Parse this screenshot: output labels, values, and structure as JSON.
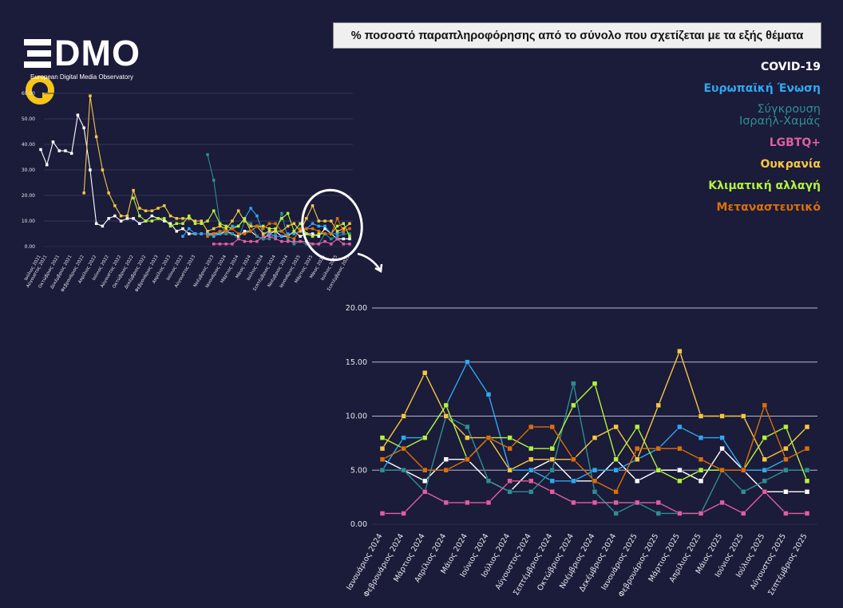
{
  "logo": {
    "brand": "DMO",
    "subtitle": "European Digital Media Observatory"
  },
  "title": "% ποσοστό παραπληροφόρησης από το σύνολο που σχετίζεται με τα εξής θέματα",
  "legend": [
    {
      "label": "COVID-19",
      "color": "#ffffff"
    },
    {
      "label": "Ευρωπαϊκή Ένωση",
      "color": "#2fa8f0"
    },
    {
      "label": "Σύγκρουση",
      "label2": "Ισραήλ-Χαμάς",
      "color": "#2d8f92"
    },
    {
      "label": "LGBTQ+",
      "color": "#e05fa0"
    },
    {
      "label": "Ουκρανία",
      "color": "#f5c842"
    },
    {
      "label": "Κλιματική αλλαγή",
      "color": "#b5f23c"
    },
    {
      "label": "Μεταναστευτικό",
      "color": "#d9700a"
    }
  ],
  "chart_data": [
    {
      "type": "line",
      "title": "",
      "ylim": [
        0,
        60
      ],
      "yticks": [
        "0.00",
        "10.00",
        "20.00",
        "30.00",
        "40.00",
        "50.00",
        "60.00"
      ],
      "ytick_values": [
        0,
        10,
        20,
        30,
        40,
        50,
        60
      ],
      "grid": true,
      "categories": [
        "Ιούλιος 2021",
        "Αύγουστος 2021",
        "Σεπτέμβριος 2021",
        "Οκτώβριος 2021",
        "Νοέμβριος 2021",
        "Δεκέμβριος 2021",
        "Ιανουάριος 2022",
        "Φεβρουάριος 2022",
        "Μάρτιος 2022",
        "Απρίλιος 2022",
        "Μάιος 2022",
        "Ιούνιος 2022",
        "Ιούλιος 2022",
        "Αύγουστος 2022",
        "Σεπτέμβριος 2022",
        "Οκτώβριος 2022",
        "Νοέμβριος 2022",
        "Δεκέμβριος 2022",
        "Ιανουάριος 2023",
        "Φεβρουάριος 2023",
        "Μάρτιος 2023",
        "Απρίλιος 2023",
        "Μάιος 2023",
        "Ιούνιος 2023",
        "Ιούλιος 2023",
        "Αύγουστος 2023",
        "Σεπτέμβριος 2023",
        "Οκτώβριος 2023",
        "Νοέμβριος 2023",
        "Δεκέμβριος 2023",
        "Ιανουάριος 2024",
        "Φεβρουάριος 2024",
        "Μάρτιος 2024",
        "Απρίλιος 2024",
        "Μάιος 2024",
        "Ιούνιος 2024",
        "Ιούλιος 2024",
        "Αύγουστος 2024",
        "Σεπτέμβριος 2024",
        "Οκτώβριος 2024",
        "Νοέμβριος 2024",
        "Δεκέμβριος 2024",
        "Ιανουάριος 2025",
        "Φεβρουάριος 2025",
        "Μάρτιος 2025",
        "Απρίλιος 2025",
        "Μάιος 2025",
        "Ιούνιος 2025",
        "Ιούλιος 2025",
        "Αύγουστος 2025",
        "Σεπτέμβριος 2025"
      ],
      "xtick_labels": [
        "Ιούλιος 2021",
        "Αύγουστος 2021",
        "Οκτώβριος 2021",
        "Δεκέμβριος 2021",
        "Φεβρουάριος 2022",
        "Απρίλιος 2022",
        "Ιούνιος 2022",
        "Αύγουστος 2022",
        "Οκτώβριος 2022",
        "Δεκέμβριος 2022",
        "Φεβρουάριος 2023",
        "Απρίλιος 2023",
        "Ιούνιος 2023",
        "Αύγουστος 2023",
        "Νοέμβριος 2023",
        "Ιανουάριος 2024",
        "Μάρτιος 2024",
        "Μάιος 2024",
        "Ιούλιος 2024",
        "Σεπτέμβριος 2024",
        "Νοέμβριος 2024",
        "Ιανουάριος 2025",
        "Μάρτιος 2025",
        "Μάιος 2025",
        "Ιούλιος 2025",
        "Σεπτέμβριος 2025"
      ],
      "xtick_index": [
        0,
        1,
        3,
        5,
        7,
        9,
        11,
        13,
        15,
        17,
        19,
        21,
        23,
        25,
        28,
        30,
        32,
        34,
        36,
        38,
        40,
        42,
        44,
        46,
        48,
        50
      ],
      "series": [
        {
          "name": "COVID-19",
          "values": [
            38,
            32,
            41,
            37.5,
            37.5,
            36.5,
            51.5,
            46.5,
            30,
            9,
            8,
            11,
            12,
            10,
            11,
            11,
            9,
            10,
            12,
            11,
            10,
            9,
            6,
            7,
            5,
            5,
            5,
            5,
            5,
            5,
            6,
            5,
            4,
            6,
            6,
            4,
            3,
            5,
            6,
            4,
            4,
            6,
            4,
            5,
            5,
            4,
            7,
            5,
            3,
            3,
            3
          ]
        },
        {
          "name": "Ευρωπαϊκή Ένωση",
          "values": [
            null,
            null,
            null,
            null,
            null,
            null,
            null,
            null,
            null,
            null,
            null,
            null,
            null,
            null,
            null,
            null,
            null,
            null,
            null,
            null,
            null,
            null,
            null,
            4,
            7,
            5,
            5,
            5,
            4,
            5,
            5,
            8,
            8,
            11,
            15,
            12,
            5,
            5,
            4,
            4,
            5,
            5,
            6,
            7,
            9,
            8,
            8,
            5,
            5,
            6,
            null
          ]
        },
        {
          "name": "Σύγκρουση Ισραήλ-Χαμάς",
          "values": [
            null,
            null,
            null,
            null,
            null,
            null,
            null,
            null,
            null,
            null,
            null,
            null,
            null,
            null,
            null,
            null,
            null,
            null,
            null,
            null,
            null,
            null,
            null,
            null,
            null,
            null,
            null,
            36,
            26,
            9,
            5,
            5,
            3,
            10,
            9,
            4,
            3,
            3,
            5,
            13,
            3,
            1,
            2,
            1,
            1,
            1,
            5,
            3,
            4,
            5,
            5
          ]
        },
        {
          "name": "LGBTQ+",
          "values": [
            null,
            null,
            null,
            null,
            null,
            null,
            null,
            null,
            null,
            null,
            null,
            null,
            null,
            null,
            null,
            null,
            null,
            null,
            null,
            null,
            null,
            null,
            null,
            null,
            null,
            null,
            null,
            null,
            1,
            1,
            1,
            1,
            3,
            2,
            2,
            2,
            4,
            4,
            3,
            2,
            2,
            2,
            2,
            2,
            1,
            1,
            2,
            1,
            3,
            1,
            1
          ]
        },
        {
          "name": "Ουκρανία",
          "values": [
            null,
            null,
            null,
            null,
            null,
            null,
            null,
            21,
            59,
            43,
            30,
            21,
            16,
            12,
            12,
            22,
            15,
            14,
            14,
            15,
            16,
            12,
            11,
            11,
            11,
            10,
            10,
            6,
            7,
            8,
            7,
            10,
            14,
            10,
            8,
            8,
            5,
            6,
            6,
            6,
            8,
            9,
            6,
            11,
            16,
            10,
            10,
            10,
            6,
            7,
            9
          ]
        },
        {
          "name": "Κλιματική αλλαγή",
          "values": [
            null,
            null,
            null,
            null,
            null,
            null,
            null,
            null,
            null,
            null,
            null,
            null,
            null,
            null,
            null,
            19,
            12,
            10,
            10,
            11,
            11,
            8,
            9,
            9,
            12,
            9,
            9,
            10,
            14,
            9,
            8,
            7,
            8,
            11,
            6,
            8,
            8,
            7,
            7,
            11,
            13,
            6,
            9,
            5,
            4,
            5,
            5,
            5,
            8,
            9,
            4
          ]
        },
        {
          "name": "Μεταναστευτικό",
          "values": [
            null,
            null,
            null,
            null,
            null,
            null,
            null,
            null,
            null,
            null,
            null,
            null,
            null,
            null,
            null,
            null,
            null,
            null,
            null,
            null,
            null,
            null,
            null,
            null,
            null,
            null,
            null,
            4,
            5,
            6,
            6,
            7,
            5,
            5,
            6,
            8,
            7,
            9,
            9,
            6,
            4,
            3,
            7,
            7,
            7,
            6,
            5,
            5,
            11,
            6,
            7
          ]
        }
      ]
    },
    {
      "type": "line",
      "title": "",
      "ylim": [
        0,
        20
      ],
      "yticks": [
        "0.00",
        "5.00",
        "10.00",
        "15.00",
        "20.00"
      ],
      "ytick_values": [
        0,
        5,
        10,
        15,
        20
      ],
      "grid": true,
      "categories": [
        "Ιανουάριος 2024",
        "Φεβρουάριος 2024",
        "Μάρτιος 2024",
        "Απρίλιος 2024",
        "Μάιος 2024",
        "Ιούνιος 2024",
        "Ιούλιος 2024",
        "Αύγουστος 2024",
        "Σεπτέμβριος 2024",
        "Οκτώβριος 2024",
        "Νοέμβριος 2024",
        "Δεκέμβριος 2024",
        "Ιανουάριος 2025",
        "Φεβρουάριος 2025",
        "Μάρτιος 2025",
        "Απρίλιος 2025",
        "Μάιος 2025",
        "Ιούνιος 2025",
        "Ιούλιος 2025",
        "Αύγουστος 2025",
        "Σεπτέμβριος 2025"
      ],
      "series": [
        {
          "name": "COVID-19",
          "values": [
            6,
            5,
            4,
            6,
            6,
            4,
            3,
            5,
            6,
            4,
            4,
            6,
            4,
            5,
            5,
            4,
            7,
            5,
            3,
            3,
            3
          ]
        },
        {
          "name": "Ευρωπαϊκή Ένωση",
          "values": [
            5,
            8,
            8,
            11,
            15,
            12,
            5,
            5,
            4,
            4,
            5,
            5,
            6,
            7,
            9,
            8,
            8,
            5,
            5,
            6,
            null
          ]
        },
        {
          "name": "Σύγκρουση Ισραήλ-Χαμάς",
          "values": [
            5,
            5,
            3,
            10,
            9,
            4,
            3,
            3,
            5,
            13,
            3,
            1,
            2,
            1,
            1,
            1,
            5,
            3,
            4,
            5,
            5
          ]
        },
        {
          "name": "LGBTQ+",
          "values": [
            1,
            1,
            3,
            2,
            2,
            2,
            4,
            4,
            3,
            2,
            2,
            2,
            2,
            2,
            1,
            1,
            2,
            1,
            3,
            1,
            1
          ]
        },
        {
          "name": "Ουκρανία",
          "values": [
            7,
            10,
            14,
            10,
            8,
            8,
            5,
            6,
            6,
            6,
            8,
            9,
            6,
            11,
            16,
            10,
            10,
            10,
            6,
            7,
            9
          ]
        },
        {
          "name": "Κλιματική αλλαγή",
          "values": [
            8,
            7,
            8,
            11,
            6,
            8,
            8,
            7,
            7,
            11,
            13,
            6,
            9,
            5,
            4,
            5,
            5,
            5,
            8,
            9,
            4
          ]
        },
        {
          "name": "Μεταναστευτικό",
          "values": [
            6,
            7,
            5,
            5,
            6,
            8,
            7,
            9,
            9,
            6,
            4,
            3,
            7,
            7,
            7,
            6,
            5,
            5,
            11,
            6,
            7
          ]
        }
      ]
    }
  ]
}
